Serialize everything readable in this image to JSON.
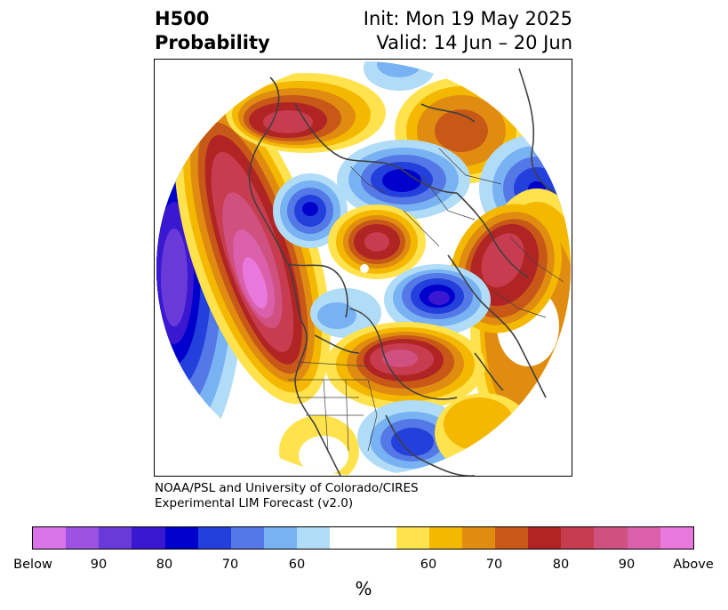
{
  "header": {
    "title_line1": "H500",
    "title_line2": "Probability",
    "init": "Init: Mon 19 May 2025",
    "valid": "Valid: 14 Jun – 20 Jun"
  },
  "credit": {
    "line1": "NOAA/PSL and University of Colorado/CIRES",
    "line2": "Experimental LIM Forecast (v2.0)"
  },
  "colorbar": {
    "unit": "%",
    "colors": [
      "#d874e8",
      "#9b52e0",
      "#6a3ad8",
      "#3a18d2",
      "#0000cc",
      "#2440dc",
      "#5478e6",
      "#78b2f2",
      "#b0dcf8",
      "#ffffff",
      "#ffffff",
      "#ffe24c",
      "#f4b800",
      "#e08c10",
      "#c85818",
      "#b02424",
      "#c83c50",
      "#d05080",
      "#da60ac",
      "#e878dc"
    ],
    "ticks": [
      "Below",
      "90",
      "80",
      "70",
      "60",
      "60",
      "70",
      "80",
      "90",
      "Above"
    ]
  },
  "map": {
    "anomalies": [
      {
        "region": "north-pacific-gulf-of-alaska",
        "sign": "below",
        "level": 80
      },
      {
        "region": "western-north-america-ridge",
        "sign": "above",
        "level": 90
      },
      {
        "region": "hudson-bay",
        "sign": "below",
        "level": 70
      },
      {
        "region": "central-arctic",
        "sign": "above",
        "level": 80
      },
      {
        "region": "greenland",
        "sign": "below",
        "level": 80
      },
      {
        "region": "western-russia",
        "sign": "above",
        "level": 80
      },
      {
        "region": "central-siberia",
        "sign": "below",
        "level": 80
      },
      {
        "region": "east-asia-china",
        "sign": "above",
        "level": 70
      },
      {
        "region": "kamchatka-bering",
        "sign": "below",
        "level": 70
      },
      {
        "region": "north-pacific-aleutians",
        "sign": "above",
        "level": 80
      },
      {
        "region": "western-atlantic",
        "sign": "below",
        "level": 70
      }
    ]
  }
}
